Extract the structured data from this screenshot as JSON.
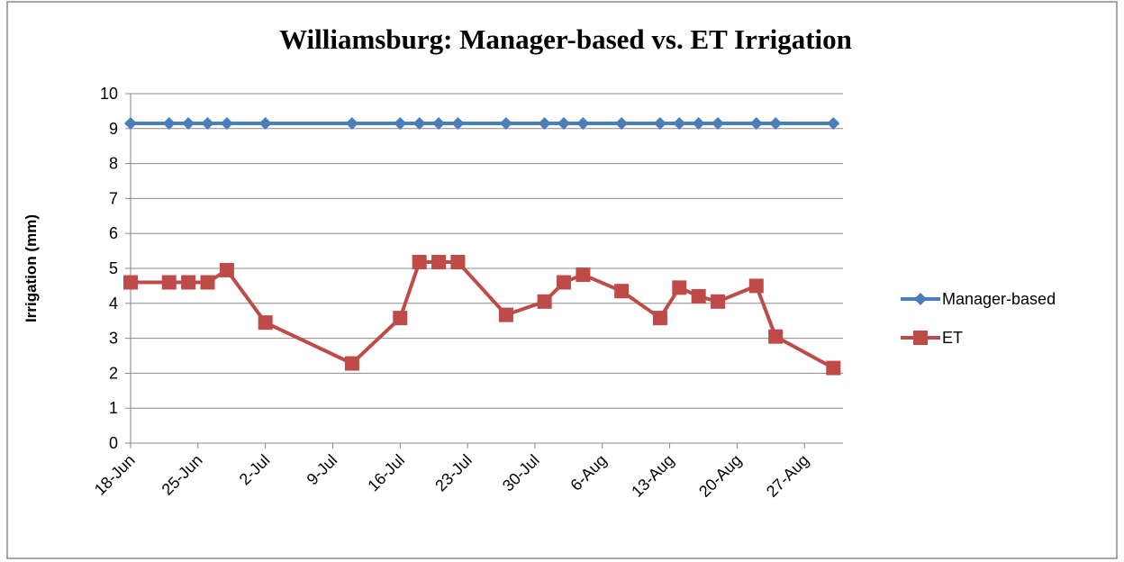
{
  "chart_data": {
    "type": "line",
    "title": "Williamsburg: Manager-based vs. ET Irrigation",
    "y_label": "Irrigation (mm)",
    "x": [
      "18-Jun",
      "22-Jun",
      "24-Jun",
      "26-Jun",
      "28-Jun",
      "2-Jul",
      "11-Jul",
      "16-Jul",
      "18-Jul",
      "20-Jul",
      "22-Jul",
      "27-Jul",
      "31-Jul",
      "2-Aug",
      "4-Aug",
      "8-Aug",
      "12-Aug",
      "14-Aug",
      "16-Aug",
      "18-Aug",
      "22-Aug",
      "24-Aug",
      "30-Aug"
    ],
    "series": [
      {
        "name": "Manager-based",
        "color": "#4a7ebb",
        "marker": "diamond",
        "values": [
          9.15,
          9.15,
          9.15,
          9.15,
          9.15,
          9.15,
          9.15,
          9.15,
          9.15,
          9.15,
          9.15,
          9.15,
          9.15,
          9.15,
          9.15,
          9.15,
          9.15,
          9.15,
          9.15,
          9.15,
          9.15,
          9.15,
          9.15
        ]
      },
      {
        "name": "ET",
        "color": "#be4b48",
        "marker": "square",
        "values": [
          4.6,
          4.6,
          4.6,
          4.6,
          4.95,
          3.45,
          2.28,
          3.58,
          5.18,
          5.18,
          5.18,
          3.67,
          4.05,
          4.6,
          4.82,
          4.35,
          3.58,
          4.45,
          4.2,
          4.05,
          4.5,
          3.05,
          2.15
        ]
      }
    ],
    "xlim": [
      "18-Jun",
      "31-Aug"
    ],
    "xticks": [
      "18-Jun",
      "25-Jun",
      "2-Jul",
      "9-Jul",
      "16-Jul",
      "23-Jul",
      "30-Jul",
      "6-Aug",
      "13-Aug",
      "20-Aug",
      "27-Aug"
    ],
    "ylim": [
      0,
      10
    ],
    "yticks": [
      0,
      1,
      2,
      3,
      4,
      5,
      6,
      7,
      8,
      9,
      10
    ],
    "grid": true,
    "legend": "right"
  }
}
